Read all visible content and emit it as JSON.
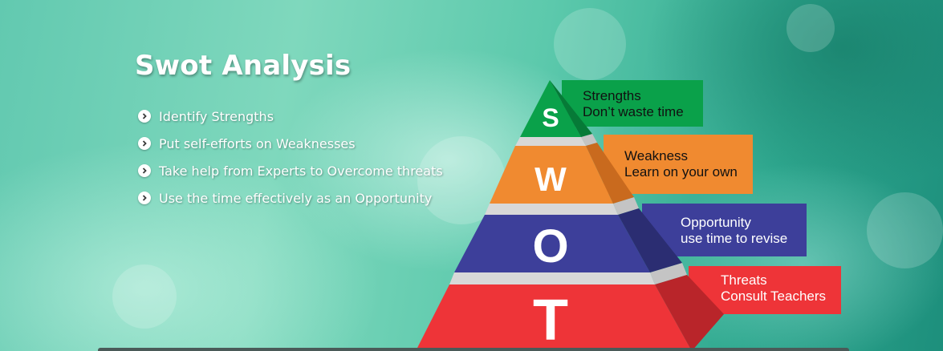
{
  "header": {
    "title": "Swot Analysis"
  },
  "bullets": [
    {
      "icon": "chevron-right-circle-icon",
      "text": "Identify Strengths"
    },
    {
      "icon": "chevron-right-circle-icon",
      "text": "Put self-efforts on Weaknesses"
    },
    {
      "icon": "chevron-right-circle-icon",
      "text": "Take help from Experts to Overcome threats"
    },
    {
      "icon": "chevron-right-circle-icon",
      "text": "Use the time effectively as an Opportunity"
    }
  ],
  "pyramid": {
    "tiers": [
      {
        "letter": "S",
        "label_line1": "Strengths",
        "label_line2": "Don’t waste time",
        "color": "#0aa14a",
        "text_color": "#111111"
      },
      {
        "letter": "W",
        "label_line1": "Weakness",
        "label_line2": "Learn on your own",
        "color": "#f08a30",
        "text_color": "#111111"
      },
      {
        "letter": "O",
        "label_line1": "Opportunity",
        "label_line2": "use time to revise",
        "color": "#3d3f9a",
        "text_color": "#ffffff"
      },
      {
        "letter": "T",
        "label_line1": "Threats",
        "label_line2": "Consult Teachers",
        "color": "#ee3438",
        "text_color": "#ffffff"
      }
    ]
  }
}
